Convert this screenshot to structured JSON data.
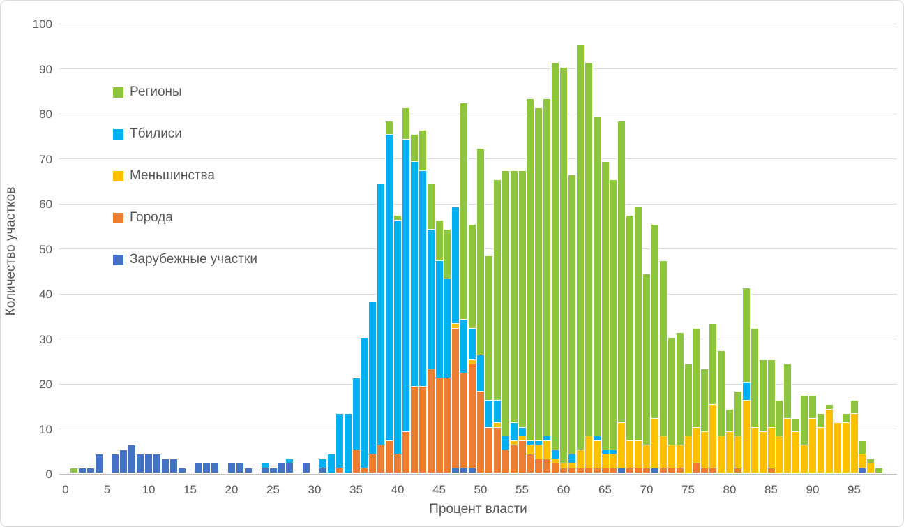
{
  "chart": {
    "legend": [
      {
        "key": "regions",
        "label": "Регионы"
      },
      {
        "key": "tbilisi",
        "label": "Тбилиси"
      },
      {
        "key": "minorities",
        "label": "Меньшинства"
      },
      {
        "key": "cities",
        "label": "Города"
      },
      {
        "key": "foreign",
        "label": "Зарубежные участки"
      }
    ]
  },
  "chart_data": {
    "type": "bar",
    "stacked": true,
    "title": "",
    "xlabel": "Процент власти",
    "ylabel": "Количество участков",
    "xlim": [
      0,
      98
    ],
    "ylim": [
      0,
      100
    ],
    "y_step": 10,
    "x_tick_step": 5,
    "x_ticks": [
      0,
      5,
      10,
      15,
      20,
      25,
      30,
      35,
      40,
      45,
      50,
      55,
      60,
      65,
      70,
      75,
      80,
      85,
      90,
      95
    ],
    "y_ticks": [
      0,
      10,
      20,
      30,
      40,
      50,
      60,
      70,
      80,
      90,
      100
    ],
    "grid": true,
    "legend_position": "inside-top-left",
    "stack_order": [
      "foreign",
      "cities",
      "minorities",
      "tbilisi",
      "regions"
    ],
    "series_labels": {
      "regions": "Регионы",
      "tbilisi": "Тбилиси",
      "minorities": "Меньшинства",
      "cities": "Города",
      "foreign": "Зарубежные участки"
    },
    "colors": {
      "regions": "#8dc53c",
      "tbilisi": "#00b0f0",
      "minorities": "#ffc000",
      "cities": "#ed7d31",
      "foreign": "#4472c4"
    },
    "bars": [
      {
        "x": 1,
        "regions": 1
      },
      {
        "x": 2,
        "foreign": 1
      },
      {
        "x": 3,
        "foreign": 1
      },
      {
        "x": 4,
        "foreign": 4
      },
      {
        "x": 6,
        "foreign": 4
      },
      {
        "x": 7,
        "foreign": 5
      },
      {
        "x": 8,
        "foreign": 6
      },
      {
        "x": 9,
        "foreign": 4
      },
      {
        "x": 10,
        "foreign": 4
      },
      {
        "x": 11,
        "foreign": 4
      },
      {
        "x": 12,
        "foreign": 3
      },
      {
        "x": 13,
        "foreign": 3
      },
      {
        "x": 14,
        "foreign": 1
      },
      {
        "x": 16,
        "foreign": 2
      },
      {
        "x": 17,
        "foreign": 2
      },
      {
        "x": 18,
        "foreign": 2
      },
      {
        "x": 20,
        "foreign": 2
      },
      {
        "x": 21,
        "foreign": 2
      },
      {
        "x": 22,
        "foreign": 1
      },
      {
        "x": 24,
        "foreign": 1,
        "tbilisi": 1
      },
      {
        "x": 25,
        "foreign": 1
      },
      {
        "x": 26,
        "foreign": 2
      },
      {
        "x": 27,
        "foreign": 2,
        "tbilisi": 1
      },
      {
        "x": 29,
        "foreign": 2
      },
      {
        "x": 31,
        "foreign": 1,
        "tbilisi": 2
      },
      {
        "x": 32,
        "tbilisi": 4
      },
      {
        "x": 33,
        "cities": 1,
        "tbilisi": 12
      },
      {
        "x": 34,
        "tbilisi": 13
      },
      {
        "x": 35,
        "cities": 5,
        "tbilisi": 16
      },
      {
        "x": 36,
        "cities": 1,
        "tbilisi": 29
      },
      {
        "x": 37,
        "cities": 4,
        "tbilisi": 34
      },
      {
        "x": 38,
        "cities": 6,
        "tbilisi": 58
      },
      {
        "x": 39,
        "cities": 7,
        "tbilisi": 68,
        "regions": 3
      },
      {
        "x": 40,
        "cities": 4,
        "tbilisi": 52,
        "regions": 1
      },
      {
        "x": 41,
        "cities": 9,
        "tbilisi": 65,
        "regions": 7
      },
      {
        "x": 42,
        "cities": 19,
        "tbilisi": 50,
        "regions": 6
      },
      {
        "x": 43,
        "cities": 19,
        "tbilisi": 48,
        "regions": 9
      },
      {
        "x": 44,
        "cities": 23,
        "tbilisi": 31,
        "regions": 10
      },
      {
        "x": 45,
        "cities": 21,
        "tbilisi": 26,
        "regions": 9
      },
      {
        "x": 46,
        "cities": 21,
        "tbilisi": 22,
        "regions": 11
      },
      {
        "x": 47,
        "foreign": 1,
        "cities": 31,
        "minorities": 1,
        "tbilisi": 26
      },
      {
        "x": 48,
        "foreign": 1,
        "cities": 21,
        "tbilisi": 12,
        "regions": 48
      },
      {
        "x": 49,
        "foreign": 1,
        "cities": 23,
        "minorities": 1,
        "tbilisi": 7,
        "regions": 23
      },
      {
        "x": 50,
        "cities": 18,
        "tbilisi": 8,
        "regions": 46
      },
      {
        "x": 51,
        "cities": 10,
        "tbilisi": 6,
        "regions": 32
      },
      {
        "x": 52,
        "cities": 10,
        "minorities": 1,
        "tbilisi": 5,
        "regions": 49
      },
      {
        "x": 53,
        "cities": 5,
        "tbilisi": 3,
        "regions": 59
      },
      {
        "x": 54,
        "cities": 6,
        "minorities": 1,
        "tbilisi": 4,
        "regions": 56
      },
      {
        "x": 55,
        "cities": 7,
        "minorities": 1,
        "tbilisi": 2,
        "regions": 57
      },
      {
        "x": 56,
        "cities": 4,
        "minorities": 2,
        "tbilisi": 1,
        "regions": 76
      },
      {
        "x": 57,
        "cities": 3,
        "minorities": 3,
        "tbilisi": 1,
        "regions": 74
      },
      {
        "x": 58,
        "cities": 3,
        "minorities": 4,
        "tbilisi": 1,
        "regions": 75
      },
      {
        "x": 59,
        "cities": 2,
        "minorities": 1,
        "tbilisi": 2,
        "regions": 86
      },
      {
        "x": 60,
        "cities": 1,
        "minorities": 1,
        "regions": 88
      },
      {
        "x": 61,
        "cities": 1,
        "minorities": 1,
        "tbilisi": 2,
        "regions": 62
      },
      {
        "x": 62,
        "cities": 1,
        "minorities": 4,
        "regions": 90
      },
      {
        "x": 63,
        "cities": 1,
        "minorities": 7,
        "regions": 83
      },
      {
        "x": 64,
        "cities": 1,
        "minorities": 6,
        "tbilisi": 1,
        "regions": 71
      },
      {
        "x": 65,
        "cities": 1,
        "minorities": 3,
        "tbilisi": 1,
        "regions": 64
      },
      {
        "x": 66,
        "cities": 1,
        "minorities": 3,
        "tbilisi": 1,
        "regions": 60
      },
      {
        "x": 67,
        "foreign": 1,
        "minorities": 10,
        "regions": 67
      },
      {
        "x": 68,
        "cities": 1,
        "minorities": 6,
        "regions": 50
      },
      {
        "x": 69,
        "cities": 1,
        "minorities": 6,
        "regions": 52
      },
      {
        "x": 70,
        "cities": 1,
        "minorities": 5,
        "regions": 38
      },
      {
        "x": 71,
        "foreign": 1,
        "minorities": 11,
        "regions": 43
      },
      {
        "x": 72,
        "cities": 1,
        "minorities": 7,
        "regions": 39
      },
      {
        "x": 73,
        "cities": 1,
        "minorities": 5,
        "regions": 24
      },
      {
        "x": 74,
        "cities": 1,
        "minorities": 5,
        "regions": 25
      },
      {
        "x": 75,
        "minorities": 8,
        "regions": 16
      },
      {
        "x": 76,
        "cities": 2,
        "minorities": 8,
        "regions": 22
      },
      {
        "x": 77,
        "cities": 1,
        "minorities": 8,
        "regions": 14
      },
      {
        "x": 78,
        "cities": 1,
        "minorities": 14,
        "regions": 18
      },
      {
        "x": 79,
        "minorities": 8,
        "regions": 19
      },
      {
        "x": 80,
        "minorities": 9,
        "regions": 5
      },
      {
        "x": 81,
        "cities": 1,
        "minorities": 7,
        "regions": 10
      },
      {
        "x": 82,
        "minorities": 16,
        "tbilisi": 4,
        "regions": 21
      },
      {
        "x": 83,
        "minorities": 10,
        "regions": 22
      },
      {
        "x": 84,
        "minorities": 9,
        "regions": 16
      },
      {
        "x": 85,
        "cities": 1,
        "minorities": 9,
        "regions": 15
      },
      {
        "x": 86,
        "minorities": 8,
        "regions": 8
      },
      {
        "x": 87,
        "minorities": 12,
        "regions": 12
      },
      {
        "x": 88,
        "minorities": 9,
        "regions": 3
      },
      {
        "x": 89,
        "minorities": 6,
        "regions": 11
      },
      {
        "x": 90,
        "minorities": 12,
        "regions": 5
      },
      {
        "x": 91,
        "minorities": 10,
        "regions": 3
      },
      {
        "x": 92,
        "minorities": 14,
        "regions": 1
      },
      {
        "x": 93,
        "minorities": 11
      },
      {
        "x": 94,
        "minorities": 11,
        "regions": 2
      },
      {
        "x": 95,
        "minorities": 13,
        "regions": 3
      },
      {
        "x": 96,
        "foreign": 1,
        "minorities": 3,
        "regions": 3
      },
      {
        "x": 97,
        "minorities": 2,
        "regions": 1
      },
      {
        "x": 98,
        "regions": 1
      }
    ]
  }
}
